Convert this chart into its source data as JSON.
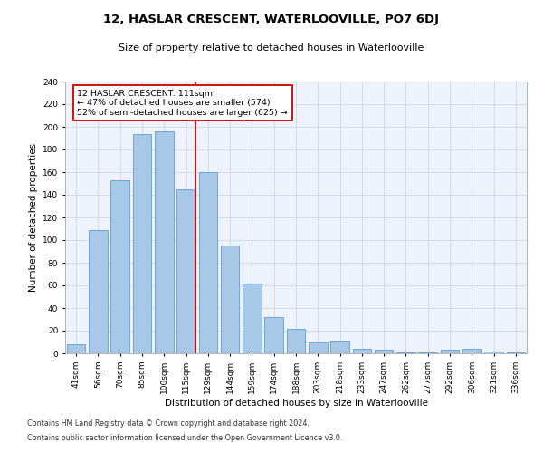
{
  "title": "12, HASLAR CRESCENT, WATERLOOVILLE, PO7 6DJ",
  "subtitle": "Size of property relative to detached houses in Waterlooville",
  "xlabel": "Distribution of detached houses by size in Waterlooville",
  "ylabel": "Number of detached properties",
  "categories": [
    "41sqm",
    "56sqm",
    "70sqm",
    "85sqm",
    "100sqm",
    "115sqm",
    "129sqm",
    "144sqm",
    "159sqm",
    "174sqm",
    "188sqm",
    "203sqm",
    "218sqm",
    "233sqm",
    "247sqm",
    "262sqm",
    "277sqm",
    "292sqm",
    "306sqm",
    "321sqm",
    "336sqm"
  ],
  "values": [
    8,
    109,
    153,
    194,
    196,
    145,
    160,
    95,
    62,
    32,
    22,
    10,
    11,
    4,
    3,
    1,
    1,
    3,
    4,
    2,
    1
  ],
  "bar_color": "#a8c8e8",
  "bar_edge_color": "#5a9fd4",
  "vline_color": "#cc0000",
  "annotation_text": "12 HASLAR CRESCENT: 111sqm\n← 47% of detached houses are smaller (574)\n52% of semi-detached houses are larger (625) →",
  "annotation_box_color": "#ffffff",
  "annotation_box_edge": "#cc0000",
  "ylim": [
    0,
    240
  ],
  "yticks": [
    0,
    20,
    40,
    60,
    80,
    100,
    120,
    140,
    160,
    180,
    200,
    220,
    240
  ],
  "footer1": "Contains HM Land Registry data © Crown copyright and database right 2024.",
  "footer2": "Contains public sector information licensed under the Open Government Licence v3.0.",
  "bg_color": "#eef2fc",
  "grid_color": "#c8cfe0",
  "title_fontsize": 9.5,
  "subtitle_fontsize": 8,
  "axis_label_fontsize": 7.5,
  "tick_fontsize": 6.5,
  "footer_fontsize": 5.8
}
